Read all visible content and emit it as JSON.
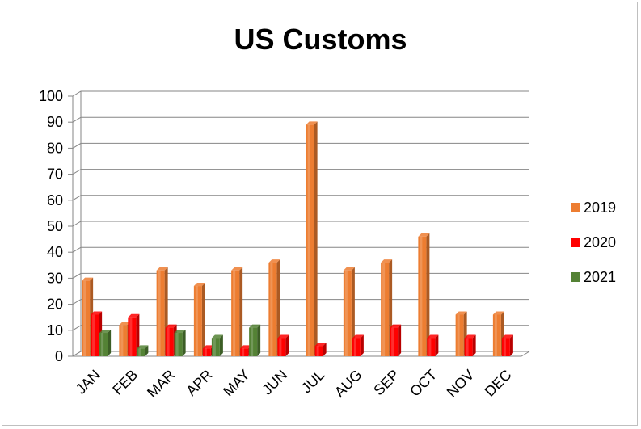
{
  "chart_data": {
    "type": "bar",
    "title": "US Customs",
    "categories": [
      "JAN",
      "FEB",
      "MAR",
      "APR",
      "MAY",
      "JUN",
      "JUL",
      "AUG",
      "SEP",
      "OCT",
      "NOV",
      "DEC"
    ],
    "series": [
      {
        "name": "2019",
        "color": "#ed7d31",
        "values": [
          29,
          12,
          33,
          27,
          33,
          36,
          89,
          33,
          36,
          46,
          16,
          16
        ]
      },
      {
        "name": "2020",
        "color": "#ff0000",
        "values": [
          16,
          15,
          11,
          3,
          3,
          7,
          4,
          7,
          11,
          7,
          7,
          7
        ]
      },
      {
        "name": "2021",
        "color": "#548235",
        "values": [
          9,
          3,
          9,
          7,
          11,
          null,
          null,
          null,
          null,
          null,
          null,
          null
        ]
      }
    ],
    "ylim": [
      0,
      100
    ],
    "yticks": [
      0,
      10,
      20,
      30,
      40,
      50,
      60,
      70,
      80,
      90,
      100
    ],
    "grid": true,
    "legend": "right",
    "xlabel": "",
    "ylabel": ""
  }
}
